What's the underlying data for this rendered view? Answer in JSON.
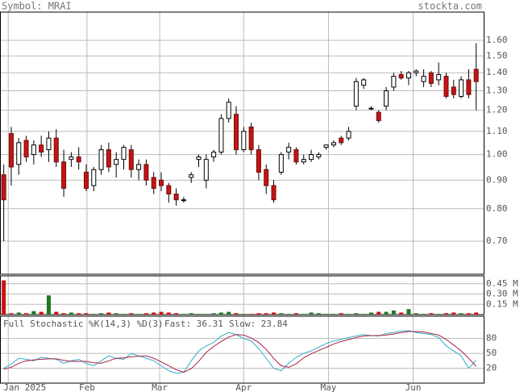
{
  "header": {
    "symbol": "Symbol: MRAI",
    "site": "stockta.com"
  },
  "chart_data": [
    {
      "type": "candlestick",
      "log": true,
      "grid": true,
      "up_color": "#ffffff",
      "down_color": "#cc1111",
      "ylim": [
        0.611,
        1.797
      ],
      "yticks": [
        {
          "value": 0.7,
          "label": "0.70"
        },
        {
          "value": 0.8,
          "label": "0.80"
        },
        {
          "value": 0.9,
          "label": "0.90"
        },
        {
          "value": 1.0,
          "label": "1.00"
        },
        {
          "value": 1.1,
          "label": "1.10"
        },
        {
          "value": 1.2,
          "label": "1.20"
        },
        {
          "value": 1.3,
          "label": "1.30"
        },
        {
          "value": 1.4,
          "label": "1.40"
        },
        {
          "value": 1.5,
          "label": "1.50"
        },
        {
          "value": 1.6,
          "label": "1.60"
        }
      ],
      "xlim": [
        -0.5,
        64
      ],
      "xticks": [
        {
          "value": 0.6,
          "label": "Jan 2025"
        },
        {
          "value": 11.1,
          "label": "Feb"
        },
        {
          "value": 20.8,
          "label": "Mar"
        },
        {
          "value": 32,
          "label": "Apr"
        },
        {
          "value": 43.3,
          "label": "May"
        },
        {
          "value": 54.6,
          "label": "Jun"
        }
      ],
      "open": [
        0.92,
        1.09,
        0.96,
        1.06,
        1.0,
        1.04,
        1.02,
        1.07,
        0.97,
        0.98,
        0.99,
        0.93,
        0.88,
        0.94,
        1.02,
        0.96,
        0.98,
        1.02,
        0.94,
        0.96,
        0.91,
        0.9,
        0.88,
        0.85,
        0.83,
        0.91,
        0.98,
        0.9,
        0.99,
        1.01,
        1.16,
        1.18,
        1.02,
        1.12,
        1.02,
        0.94,
        0.88,
        0.93,
        1.01,
        1.02,
        0.97,
        0.98,
        0.99,
        1.03,
        1.04,
        1.07,
        1.07,
        1.22,
        1.33,
        1.21,
        1.19,
        1.22,
        1.32,
        1.39,
        1.37,
        1.4,
        1.35,
        1.4,
        1.36,
        1.38,
        1.32,
        1.27,
        1.36,
        1.42
      ],
      "high": [
        0.96,
        1.12,
        1.07,
        1.08,
        1.06,
        1.08,
        1.1,
        1.11,
        1.02,
        1.01,
        1.03,
        0.96,
        0.95,
        1.04,
        1.05,
        1.01,
        1.04,
        1.04,
        0.98,
        0.98,
        0.93,
        0.93,
        0.89,
        0.87,
        0.84,
        0.93,
        1.0,
        1.0,
        1.02,
        1.18,
        1.26,
        1.22,
        1.12,
        1.14,
        1.04,
        0.96,
        0.9,
        1.01,
        1.05,
        1.03,
        1.0,
        1.02,
        1.01,
        1.04,
        1.06,
        1.08,
        1.12,
        1.37,
        1.37,
        1.22,
        1.2,
        1.32,
        1.4,
        1.41,
        1.41,
        1.42,
        1.42,
        1.41,
        1.46,
        1.4,
        1.36,
        1.38,
        1.42,
        1.58
      ],
      "low": [
        0.7,
        0.88,
        0.92,
        0.97,
        0.96,
        0.99,
        0.97,
        0.95,
        0.84,
        0.95,
        0.94,
        0.86,
        0.86,
        0.92,
        0.93,
        0.91,
        0.94,
        0.91,
        0.9,
        0.88,
        0.85,
        0.86,
        0.82,
        0.81,
        0.82,
        0.89,
        0.95,
        0.87,
        0.97,
        1.0,
        1.14,
        1.0,
        1.01,
        1.0,
        0.9,
        0.85,
        0.82,
        0.92,
        0.98,
        0.96,
        0.96,
        0.97,
        0.98,
        1.02,
        1.03,
        1.04,
        1.06,
        1.2,
        1.31,
        1.2,
        1.14,
        1.2,
        1.3,
        1.36,
        1.33,
        1.38,
        1.32,
        1.32,
        1.33,
        1.26,
        1.26,
        1.26,
        1.26,
        1.2
      ],
      "close": [
        0.83,
        0.95,
        1.05,
        0.99,
        1.04,
        1.01,
        1.07,
        0.97,
        0.87,
        0.99,
        0.97,
        0.87,
        0.94,
        1.02,
        0.95,
        0.98,
        1.03,
        0.94,
        0.96,
        0.9,
        0.87,
        0.88,
        0.85,
        0.83,
        0.83,
        0.92,
        0.99,
        0.98,
        1.01,
        1.16,
        1.24,
        1.02,
        1.1,
        1.02,
        0.93,
        0.88,
        0.83,
        1.0,
        1.03,
        0.97,
        0.98,
        1.0,
        1.0,
        1.04,
        1.05,
        1.05,
        1.1,
        1.35,
        1.36,
        1.21,
        1.15,
        1.3,
        1.38,
        1.37,
        1.4,
        1.41,
        1.38,
        1.34,
        1.39,
        1.27,
        1.28,
        1.36,
        1.28,
        1.35
      ]
    },
    {
      "type": "volume",
      "up_color": "#227722",
      "down_color": "#cc1111",
      "ylim": [
        0,
        0.565
      ],
      "yticks": [
        {
          "value": 0.15,
          "label": "0.15 M"
        },
        {
          "value": 0.3,
          "label": "0.30 M"
        },
        {
          "value": 0.45,
          "label": "0.45 M"
        }
      ],
      "values": [
        0.5,
        0.02,
        0.03,
        0.02,
        0.05,
        0.04,
        0.28,
        0.04,
        0.02,
        0.03,
        0.02,
        0.02,
        0.01,
        0.02,
        0.03,
        0.02,
        0.01,
        0.02,
        0.01,
        0.02,
        0.03,
        0.04,
        0.03,
        0.02,
        0.01,
        0.02,
        0.01,
        0.01,
        0.02,
        0.03,
        0.04,
        0.02,
        0.01,
        0.01,
        0.02,
        0.02,
        0.03,
        0.02,
        0.01,
        0.02,
        0.01,
        0.03,
        0.02,
        0.01,
        0.01,
        0.02,
        0.01,
        0.02,
        0.01,
        0.03,
        0.04,
        0.04,
        0.06,
        0.03,
        0.08,
        0.02,
        0.01,
        0.02,
        0.01,
        0.02,
        0.03,
        0.02,
        0.02,
        0.03
      ]
    },
    {
      "type": "line",
      "title": "Full Stochastic %K(14,3) %D(3)",
      "ylim": [
        -10,
        125
      ],
      "yticks": [
        20,
        50,
        80
      ],
      "series": [
        {
          "name": "Fast: 36.31",
          "color": "#33aacc",
          "values": [
            20,
            28,
            40,
            38,
            35,
            42,
            40,
            38,
            30,
            35,
            38,
            30,
            25,
            35,
            45,
            40,
            38,
            50,
            45,
            40,
            35,
            25,
            15,
            10,
            12,
            35,
            55,
            65,
            72,
            85,
            92,
            88,
            80,
            75,
            60,
            40,
            20,
            15,
            30,
            42,
            50,
            55,
            62,
            70,
            75,
            78,
            82,
            85,
            88,
            86,
            85,
            90,
            92,
            95,
            96,
            92,
            90,
            88,
            82,
            65,
            55,
            45,
            20,
            36.31
          ]
        },
        {
          "name": "Slow: 23.84",
          "color": "#aa2244",
          "values": [
            18,
            22,
            30,
            35,
            37,
            38,
            39,
            39,
            36,
            34,
            34,
            34,
            31,
            30,
            35,
            40,
            41,
            43,
            44,
            45,
            40,
            33,
            25,
            17,
            12,
            19,
            34,
            52,
            64,
            74,
            83,
            88,
            87,
            81,
            72,
            58,
            40,
            25,
            22,
            29,
            41,
            49,
            56,
            62,
            69,
            74,
            78,
            82,
            85,
            86,
            86,
            87,
            89,
            92,
            94,
            94,
            93,
            90,
            87,
            78,
            67,
            55,
            40,
            23.84
          ]
        }
      ]
    }
  ]
}
